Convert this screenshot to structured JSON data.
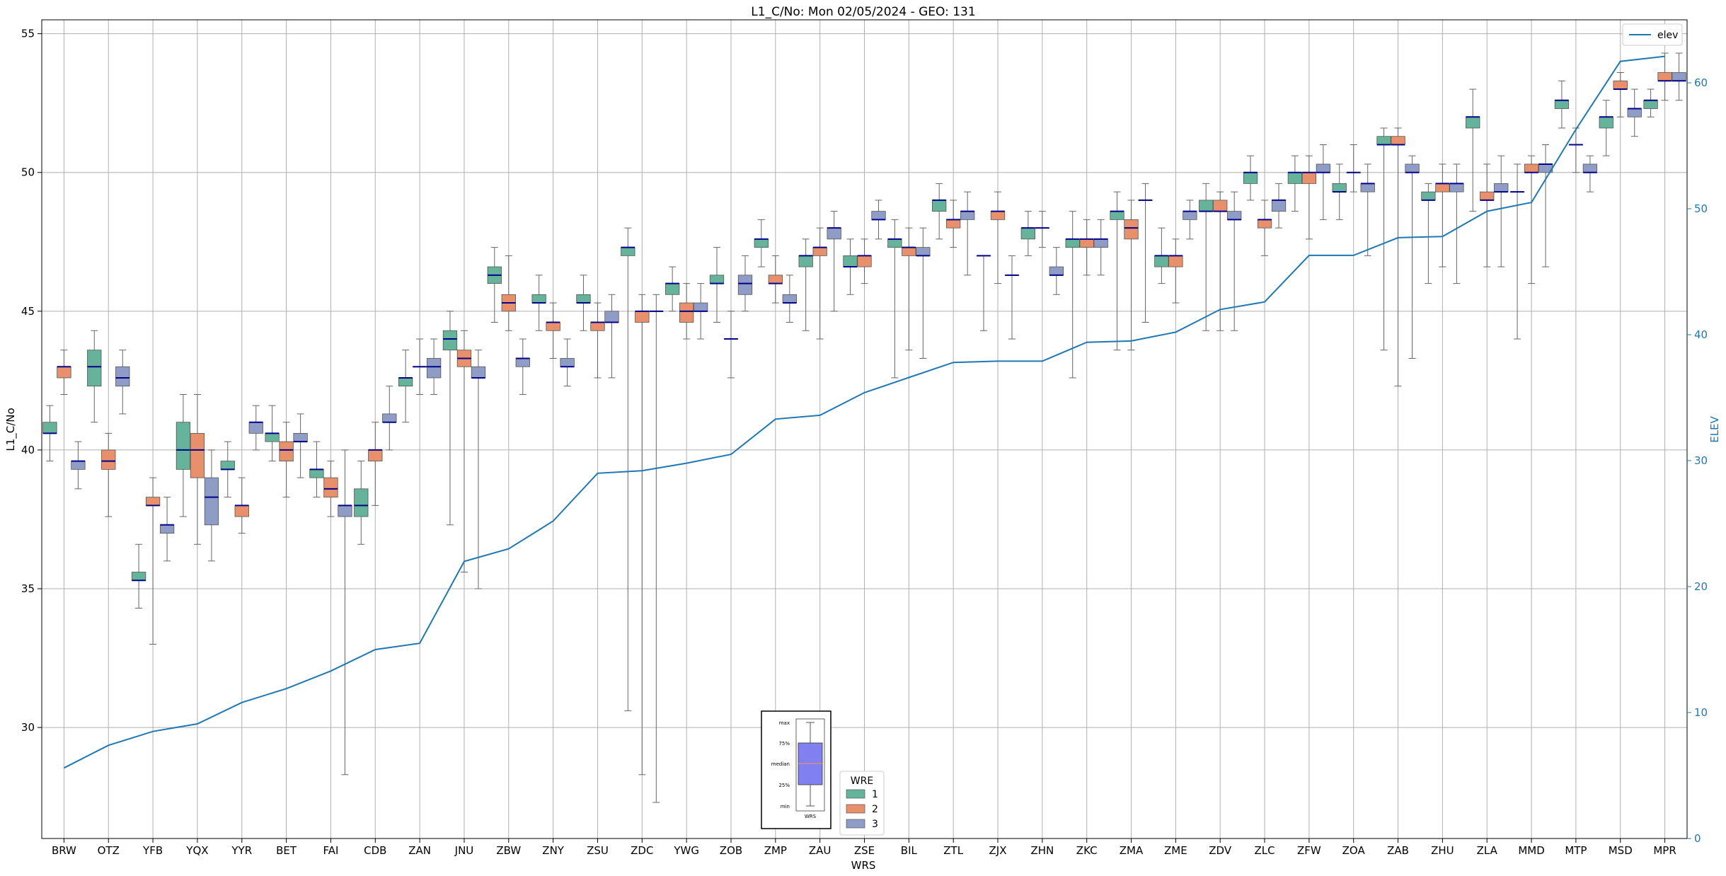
{
  "chart_data": {
    "type": "box",
    "title": "L1_C/No: Mon 02/05/2024 - GEO: 131",
    "xlabel": "WRS",
    "ylabel": "L1_C/No",
    "ylabel_right": "ELEV",
    "ylim": [
      26,
      55.5
    ],
    "ylim_right": [
      0,
      65
    ],
    "yticks": [
      30,
      35,
      40,
      45,
      50,
      55
    ],
    "yticks_right": [
      0,
      10,
      20,
      30,
      40,
      50,
      60
    ],
    "grid": true,
    "categories": [
      "BRW",
      "OTZ",
      "YFB",
      "YQX",
      "YYR",
      "BET",
      "FAI",
      "CDB",
      "ZAN",
      "JNU",
      "ZBW",
      "ZNY",
      "ZSU",
      "ZDC",
      "YWG",
      "ZOB",
      "ZMP",
      "ZAU",
      "ZSE",
      "BIL",
      "ZTL",
      "ZJX",
      "ZHN",
      "ZKC",
      "ZMA",
      "ZME",
      "ZDV",
      "ZLC",
      "ZFW",
      "ZOA",
      "ZAB",
      "ZHU",
      "ZLA",
      "MMD",
      "MTP",
      "MSD",
      "MPR"
    ],
    "series_colors": {
      "1": "#66b39b",
      "2": "#e8906c",
      "3": "#8f9dc6"
    },
    "median_color": "#00008b",
    "elev_color": "#1f77b4",
    "box_legend": {
      "title": "WRE",
      "labels": [
        "1",
        "2",
        "3"
      ],
      "placement": "bottom-center"
    },
    "line_legend": {
      "label": "elev",
      "placement": "top-right"
    },
    "key_inset": {
      "labels": [
        "max",
        "75%",
        "median",
        "25%",
        "min"
      ],
      "xlabel": "WRS"
    },
    "elev": [
      5.6,
      7.4,
      8.5,
      9.1,
      10.8,
      11.9,
      13.3,
      15.0,
      15.5,
      22.0,
      23.0,
      25.2,
      29.0,
      29.2,
      29.8,
      30.5,
      33.3,
      33.6,
      35.4,
      36.6,
      37.8,
      37.9,
      37.9,
      39.4,
      39.5,
      40.2,
      42.0,
      42.6,
      46.3,
      46.3,
      47.7,
      47.8,
      49.8,
      50.5,
      56.3,
      61.7,
      62.1
    ],
    "boxes": [
      [
        {
          "wre": "1",
          "min": 39.6,
          "q1": 40.6,
          "med": 40.6,
          "q3": 41.0,
          "max": 41.6
        },
        {
          "wre": "2",
          "min": 42.0,
          "q1": 42.6,
          "med": 43.0,
          "q3": 43.0,
          "max": 43.6
        },
        {
          "wre": "3",
          "min": 38.6,
          "q1": 39.3,
          "med": 39.6,
          "q3": 39.6,
          "max": 40.3
        }
      ],
      [
        {
          "wre": "1",
          "min": 41.0,
          "q1": 42.3,
          "med": 43.0,
          "q3": 43.6,
          "max": 44.3
        },
        {
          "wre": "2",
          "min": 37.6,
          "q1": 39.3,
          "med": 39.6,
          "q3": 40.0,
          "max": 40.6
        },
        {
          "wre": "3",
          "min": 41.3,
          "q1": 42.3,
          "med": 42.6,
          "q3": 43.0,
          "max": 43.6
        }
      ],
      [
        {
          "wre": "1",
          "min": 34.3,
          "q1": 35.3,
          "med": 35.3,
          "q3": 35.6,
          "max": 36.6
        },
        {
          "wre": "2",
          "min": 33.0,
          "q1": 38.0,
          "med": 38.0,
          "q3": 38.3,
          "max": 39.0
        },
        {
          "wre": "3",
          "min": 36.0,
          "q1": 37.0,
          "med": 37.3,
          "q3": 37.3,
          "max": 38.3
        }
      ],
      [
        {
          "wre": "1",
          "min": 37.6,
          "q1": 39.3,
          "med": 40.0,
          "q3": 41.0,
          "max": 42.0
        },
        {
          "wre": "2",
          "min": 36.6,
          "q1": 39.0,
          "med": 40.0,
          "q3": 40.6,
          "max": 42.0
        },
        {
          "wre": "3",
          "min": 36.0,
          "q1": 37.3,
          "med": 38.3,
          "q3": 39.0,
          "max": 40.0
        }
      ],
      [
        {
          "wre": "1",
          "min": 38.3,
          "q1": 39.3,
          "med": 39.3,
          "q3": 39.6,
          "max": 40.3
        },
        {
          "wre": "2",
          "min": 37.0,
          "q1": 37.6,
          "med": 38.0,
          "q3": 38.0,
          "max": 39.0
        },
        {
          "wre": "3",
          "min": 40.0,
          "q1": 40.6,
          "med": 41.0,
          "q3": 41.0,
          "max": 41.6
        }
      ],
      [
        {
          "wre": "1",
          "min": 39.6,
          "q1": 40.3,
          "med": 40.6,
          "q3": 40.6,
          "max": 41.6
        },
        {
          "wre": "2",
          "min": 38.3,
          "q1": 39.6,
          "med": 40.0,
          "q3": 40.3,
          "max": 41.0
        },
        {
          "wre": "3",
          "min": 39.0,
          "q1": 40.3,
          "med": 40.3,
          "q3": 40.6,
          "max": 41.3
        }
      ],
      [
        {
          "wre": "1",
          "min": 38.3,
          "q1": 39.0,
          "med": 39.3,
          "q3": 39.3,
          "max": 40.3
        },
        {
          "wre": "2",
          "min": 37.6,
          "q1": 38.3,
          "med": 38.6,
          "q3": 39.0,
          "max": 39.6
        },
        {
          "wre": "3",
          "min": 28.3,
          "q1": 37.6,
          "med": 38.0,
          "q3": 38.0,
          "max": 40.0
        }
      ],
      [
        {
          "wre": "1",
          "min": 36.6,
          "q1": 37.6,
          "med": 38.0,
          "q3": 38.6,
          "max": 39.6
        },
        {
          "wre": "2",
          "min": 38.0,
          "q1": 39.6,
          "med": 40.0,
          "q3": 40.0,
          "max": 41.0
        },
        {
          "wre": "3",
          "min": 40.0,
          "q1": 41.0,
          "med": 41.0,
          "q3": 41.3,
          "max": 42.3
        }
      ],
      [
        {
          "wre": "1",
          "min": 41.0,
          "q1": 42.3,
          "med": 42.6,
          "q3": 42.6,
          "max": 43.6
        },
        {
          "wre": "2",
          "min": 42.0,
          "q1": 43.0,
          "med": 43.0,
          "q3": 43.0,
          "max": 44.0
        },
        {
          "wre": "3",
          "min": 42.0,
          "q1": 42.6,
          "med": 43.0,
          "q3": 43.3,
          "max": 44.0
        }
      ],
      [
        {
          "wre": "1",
          "min": 37.3,
          "q1": 43.6,
          "med": 44.0,
          "q3": 44.3,
          "max": 45.0
        },
        {
          "wre": "2",
          "min": 35.6,
          "q1": 43.0,
          "med": 43.3,
          "q3": 43.6,
          "max": 44.3
        },
        {
          "wre": "3",
          "min": 35.0,
          "q1": 42.6,
          "med": 42.6,
          "q3": 43.0,
          "max": 43.6
        }
      ],
      [
        {
          "wre": "1",
          "min": 44.6,
          "q1": 46.0,
          "med": 46.3,
          "q3": 46.6,
          "max": 47.3
        },
        {
          "wre": "2",
          "min": 44.3,
          "q1": 45.0,
          "med": 45.3,
          "q3": 45.6,
          "max": 47.0
        },
        {
          "wre": "3",
          "min": 42.0,
          "q1": 43.0,
          "med": 43.3,
          "q3": 43.3,
          "max": 44.0
        }
      ],
      [
        {
          "wre": "1",
          "min": 44.3,
          "q1": 45.3,
          "med": 45.3,
          "q3": 45.6,
          "max": 46.3
        },
        {
          "wre": "2",
          "min": 43.3,
          "q1": 44.3,
          "med": 44.6,
          "q3": 44.6,
          "max": 45.3
        },
        {
          "wre": "3",
          "min": 42.3,
          "q1": 43.0,
          "med": 43.0,
          "q3": 43.3,
          "max": 44.0
        }
      ],
      [
        {
          "wre": "1",
          "min": 44.3,
          "q1": 45.3,
          "med": 45.3,
          "q3": 45.6,
          "max": 46.3
        },
        {
          "wre": "2",
          "min": 42.6,
          "q1": 44.3,
          "med": 44.6,
          "q3": 44.6,
          "max": 45.3
        },
        {
          "wre": "3",
          "min": 42.6,
          "q1": 44.6,
          "med": 44.6,
          "q3": 45.0,
          "max": 45.6
        }
      ],
      [
        {
          "wre": "1",
          "min": 30.6,
          "q1": 47.0,
          "med": 47.3,
          "q3": 47.3,
          "max": 48.0
        },
        {
          "wre": "2",
          "min": 28.3,
          "q1": 44.6,
          "med": 45.0,
          "q3": 45.0,
          "max": 45.6
        },
        {
          "wre": "3",
          "min": 27.3,
          "q1": 45.0,
          "med": 45.0,
          "q3": 45.0,
          "max": 45.6
        }
      ],
      [
        {
          "wre": "1",
          "min": 45.0,
          "q1": 45.6,
          "med": 46.0,
          "q3": 46.0,
          "max": 46.6
        },
        {
          "wre": "2",
          "min": 44.0,
          "q1": 44.6,
          "med": 45.0,
          "q3": 45.3,
          "max": 46.0
        },
        {
          "wre": "3",
          "min": 44.0,
          "q1": 45.0,
          "med": 45.0,
          "q3": 45.3,
          "max": 46.0
        }
      ],
      [
        {
          "wre": "1",
          "min": 44.6,
          "q1": 46.0,
          "med": 46.0,
          "q3": 46.3,
          "max": 47.3
        },
        {
          "wre": "2",
          "min": 42.6,
          "q1": 44.0,
          "med": 44.0,
          "q3": 44.0,
          "max": 45.0
        },
        {
          "wre": "3",
          "min": 45.0,
          "q1": 45.6,
          "med": 46.0,
          "q3": 46.3,
          "max": 47.0
        }
      ],
      [
        {
          "wre": "1",
          "min": 46.6,
          "q1": 47.3,
          "med": 47.6,
          "q3": 47.6,
          "max": 48.3
        },
        {
          "wre": "2",
          "min": 45.3,
          "q1": 46.0,
          "med": 46.0,
          "q3": 46.3,
          "max": 47.0
        },
        {
          "wre": "3",
          "min": 44.6,
          "q1": 45.3,
          "med": 45.3,
          "q3": 45.6,
          "max": 46.3
        }
      ],
      [
        {
          "wre": "1",
          "min": 44.3,
          "q1": 46.6,
          "med": 47.0,
          "q3": 47.0,
          "max": 47.6
        },
        {
          "wre": "2",
          "min": 44.0,
          "q1": 47.0,
          "med": 47.3,
          "q3": 47.3,
          "max": 48.0
        },
        {
          "wre": "3",
          "min": 45.0,
          "q1": 47.6,
          "med": 48.0,
          "q3": 48.0,
          "max": 48.6
        }
      ],
      [
        {
          "wre": "1",
          "min": 45.6,
          "q1": 46.6,
          "med": 46.6,
          "q3": 47.0,
          "max": 47.6
        },
        {
          "wre": "2",
          "min": 46.0,
          "q1": 46.6,
          "med": 47.0,
          "q3": 47.0,
          "max": 47.6
        },
        {
          "wre": "3",
          "min": 47.6,
          "q1": 48.3,
          "med": 48.3,
          "q3": 48.6,
          "max": 49.0
        }
      ],
      [
        {
          "wre": "1",
          "min": 42.6,
          "q1": 47.3,
          "med": 47.6,
          "q3": 47.6,
          "max": 48.3
        },
        {
          "wre": "2",
          "min": 43.6,
          "q1": 47.0,
          "med": 47.3,
          "q3": 47.3,
          "max": 48.0
        },
        {
          "wre": "3",
          "min": 43.3,
          "q1": 47.0,
          "med": 47.0,
          "q3": 47.3,
          "max": 48.0
        }
      ],
      [
        {
          "wre": "1",
          "min": 47.6,
          "q1": 48.6,
          "med": 49.0,
          "q3": 49.0,
          "max": 49.6
        },
        {
          "wre": "2",
          "min": 47.3,
          "q1": 48.0,
          "med": 48.3,
          "q3": 48.3,
          "max": 49.0
        },
        {
          "wre": "3",
          "min": 46.3,
          "q1": 48.3,
          "med": 48.6,
          "q3": 48.6,
          "max": 49.3
        }
      ],
      [
        {
          "wre": "1",
          "min": 44.3,
          "q1": 47.0,
          "med": 47.0,
          "q3": 47.0,
          "max": 47.0
        },
        {
          "wre": "2",
          "min": 46.0,
          "q1": 48.3,
          "med": 48.6,
          "q3": 48.6,
          "max": 49.3
        },
        {
          "wre": "3",
          "min": 44.0,
          "q1": 46.3,
          "med": 46.3,
          "q3": 46.3,
          "max": 47.0
        }
      ],
      [
        {
          "wre": "1",
          "min": 47.0,
          "q1": 47.6,
          "med": 48.0,
          "q3": 48.0,
          "max": 48.6
        },
        {
          "wre": "2",
          "min": 47.3,
          "q1": 48.0,
          "med": 48.0,
          "q3": 48.0,
          "max": 48.6
        },
        {
          "wre": "3",
          "min": 45.6,
          "q1": 46.3,
          "med": 46.3,
          "q3": 46.6,
          "max": 47.3
        }
      ],
      [
        {
          "wre": "1",
          "min": 42.6,
          "q1": 47.3,
          "med": 47.6,
          "q3": 47.6,
          "max": 48.6
        },
        {
          "wre": "2",
          "min": 46.3,
          "q1": 47.3,
          "med": 47.6,
          "q3": 47.6,
          "max": 48.3
        },
        {
          "wre": "3",
          "min": 46.3,
          "q1": 47.3,
          "med": 47.6,
          "q3": 47.6,
          "max": 48.3
        }
      ],
      [
        {
          "wre": "1",
          "min": 43.6,
          "q1": 48.3,
          "med": 48.6,
          "q3": 48.6,
          "max": 49.3
        },
        {
          "wre": "2",
          "min": 43.6,
          "q1": 47.6,
          "med": 48.0,
          "q3": 48.3,
          "max": 49.0
        },
        {
          "wre": "3",
          "min": 44.6,
          "q1": 49.0,
          "med": 49.0,
          "q3": 49.0,
          "max": 49.6
        }
      ],
      [
        {
          "wre": "1",
          "min": 46.0,
          "q1": 46.6,
          "med": 47.0,
          "q3": 47.0,
          "max": 48.0
        },
        {
          "wre": "2",
          "min": 45.3,
          "q1": 46.6,
          "med": 47.0,
          "q3": 47.0,
          "max": 47.6
        },
        {
          "wre": "3",
          "min": 47.6,
          "q1": 48.3,
          "med": 48.6,
          "q3": 48.6,
          "max": 49.0
        }
      ],
      [
        {
          "wre": "1",
          "min": 44.3,
          "q1": 48.6,
          "med": 48.6,
          "q3": 49.0,
          "max": 49.6
        },
        {
          "wre": "2",
          "min": 44.3,
          "q1": 48.6,
          "med": 48.6,
          "q3": 49.0,
          "max": 49.3
        },
        {
          "wre": "3",
          "min": 44.3,
          "q1": 48.3,
          "med": 48.3,
          "q3": 48.6,
          "max": 49.3
        }
      ],
      [
        {
          "wre": "1",
          "min": 49.0,
          "q1": 49.6,
          "med": 50.0,
          "q3": 50.0,
          "max": 50.6
        },
        {
          "wre": "2",
          "min": 47.0,
          "q1": 48.0,
          "med": 48.3,
          "q3": 48.3,
          "max": 49.0
        },
        {
          "wre": "3",
          "min": 48.0,
          "q1": 48.6,
          "med": 49.0,
          "q3": 49.0,
          "max": 49.6
        }
      ],
      [
        {
          "wre": "1",
          "min": 48.6,
          "q1": 49.6,
          "med": 50.0,
          "q3": 50.0,
          "max": 50.6
        },
        {
          "wre": "2",
          "min": 47.6,
          "q1": 49.6,
          "med": 50.0,
          "q3": 50.0,
          "max": 50.6
        },
        {
          "wre": "3",
          "min": 48.3,
          "q1": 50.0,
          "med": 50.0,
          "q3": 50.3,
          "max": 51.0
        }
      ],
      [
        {
          "wre": "1",
          "min": 48.3,
          "q1": 49.3,
          "med": 49.3,
          "q3": 49.6,
          "max": 50.3
        },
        {
          "wre": "2",
          "min": 49.3,
          "q1": 50.0,
          "med": 50.0,
          "q3": 50.0,
          "max": 51.0
        },
        {
          "wre": "3",
          "min": 47.0,
          "q1": 49.3,
          "med": 49.6,
          "q3": 49.6,
          "max": 50.3
        }
      ],
      [
        {
          "wre": "1",
          "min": 43.6,
          "q1": 51.0,
          "med": 51.0,
          "q3": 51.3,
          "max": 51.6
        },
        {
          "wre": "2",
          "min": 42.3,
          "q1": 51.0,
          "med": 51.0,
          "q3": 51.3,
          "max": 51.6
        },
        {
          "wre": "3",
          "min": 43.3,
          "q1": 50.0,
          "med": 50.0,
          "q3": 50.3,
          "max": 50.6
        }
      ],
      [
        {
          "wre": "1",
          "min": 46.0,
          "q1": 49.0,
          "med": 49.0,
          "q3": 49.3,
          "max": 49.6
        },
        {
          "wre": "2",
          "min": 46.6,
          "q1": 49.3,
          "med": 49.6,
          "q3": 49.6,
          "max": 50.3
        },
        {
          "wre": "3",
          "min": 46.0,
          "q1": 49.3,
          "med": 49.6,
          "q3": 49.6,
          "max": 50.3
        }
      ],
      [
        {
          "wre": "1",
          "min": 48.6,
          "q1": 51.6,
          "med": 52.0,
          "q3": 52.0,
          "max": 53.0
        },
        {
          "wre": "2",
          "min": 46.6,
          "q1": 49.0,
          "med": 49.0,
          "q3": 49.3,
          "max": 50.3
        },
        {
          "wre": "3",
          "min": 46.6,
          "q1": 49.3,
          "med": 49.3,
          "q3": 49.6,
          "max": 50.6
        }
      ],
      [
        {
          "wre": "1",
          "min": 44.0,
          "q1": 49.3,
          "med": 49.3,
          "q3": 49.3,
          "max": 50.3
        },
        {
          "wre": "2",
          "min": 46.0,
          "q1": 50.0,
          "med": 50.0,
          "q3": 50.3,
          "max": 50.6
        },
        {
          "wre": "3",
          "min": 46.6,
          "q1": 50.0,
          "med": 50.3,
          "q3": 50.3,
          "max": 51.0
        }
      ],
      [
        {
          "wre": "1",
          "min": 51.6,
          "q1": 52.3,
          "med": 52.6,
          "q3": 52.6,
          "max": 53.3
        },
        {
          "wre": "2",
          "min": 50.0,
          "q1": 51.0,
          "med": 51.0,
          "q3": 51.0,
          "max": 51.6
        },
        {
          "wre": "3",
          "min": 49.3,
          "q1": 50.0,
          "med": 50.0,
          "q3": 50.3,
          "max": 50.6
        }
      ],
      [
        {
          "wre": "1",
          "min": 50.6,
          "q1": 51.6,
          "med": 52.0,
          "q3": 52.0,
          "max": 52.6
        },
        {
          "wre": "2",
          "min": 52.0,
          "q1": 53.0,
          "med": 53.0,
          "q3": 53.3,
          "max": 53.6
        },
        {
          "wre": "3",
          "min": 51.3,
          "q1": 52.0,
          "med": 52.3,
          "q3": 52.3,
          "max": 53.0
        }
      ],
      [
        {
          "wre": "1",
          "min": 52.0,
          "q1": 52.3,
          "med": 52.6,
          "q3": 52.6,
          "max": 53.0
        },
        {
          "wre": "2",
          "min": 52.6,
          "q1": 53.3,
          "med": 53.3,
          "q3": 53.6,
          "max": 54.3
        },
        {
          "wre": "3",
          "min": 52.6,
          "q1": 53.3,
          "med": 53.3,
          "q3": 53.6,
          "max": 54.3
        }
      ]
    ]
  }
}
